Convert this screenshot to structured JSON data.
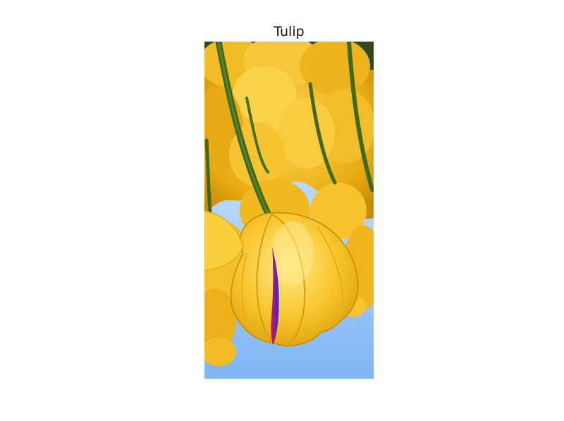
{
  "figure": {
    "title": "Tulip"
  },
  "image": {
    "subject": "tulip",
    "colors": {
      "sky_light": "#dbeeff",
      "sky_mid": "#9ec9f8",
      "sky_deep": "#6aa8f2",
      "petal_light": "#ffe27a",
      "petal_mid": "#f7c52a",
      "petal_dark": "#d99a08",
      "stem": "#3f6a1e",
      "stem_dark": "#2b4a12",
      "marker_blue": "#2a2ad8",
      "marker_magenta": "#d2106a"
    }
  }
}
